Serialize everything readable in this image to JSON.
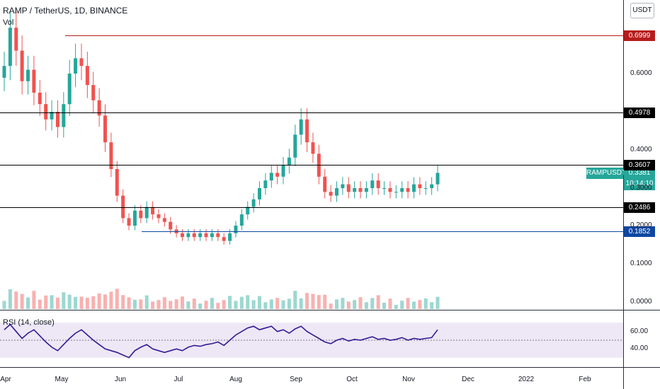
{
  "header": {
    "legend": "RAMP / TetherUS, 1D, BINANCE",
    "vol_label": "Vol",
    "rsi_label": "RSI (14, close)",
    "currency_button": "USDT"
  },
  "current": {
    "symbol": "RAMPUSDT",
    "price": "0.3381",
    "countdown": "10:14:10"
  },
  "colors": {
    "up": "#26a69a",
    "down": "#ef5350",
    "rsi": "#311b92",
    "rsi_band": "#ede7f6"
  },
  "chart_data": {
    "type": "candlestick",
    "x_axis_labels": [
      "Apr",
      "May",
      "Jun",
      "Jul",
      "Aug",
      "Sep",
      "Oct",
      "Nov",
      "Dec",
      "2022",
      "Feb"
    ],
    "y_axis_labels": [
      "0.6000",
      "0.4000",
      "0.3000",
      "0.2000",
      "0.1000",
      "0.0000"
    ],
    "rsi_axis_labels": [
      "60.00",
      "40.00"
    ],
    "levels": [
      {
        "label": "0.6999",
        "value": 0.6999,
        "color": "#b71c1c"
      },
      {
        "label": "0.4978",
        "value": 0.4978,
        "color": "#000000"
      },
      {
        "label": "0.3607",
        "value": 0.3607,
        "color": "#000000"
      },
      {
        "label": "0.2486",
        "value": 0.2486,
        "color": "#000000"
      },
      {
        "label": "0.1852",
        "value": 0.1852,
        "color": "#0d47a1"
      }
    ],
    "close_series": [
      0.62,
      0.72,
      0.66,
      0.58,
      0.61,
      0.55,
      0.52,
      0.48,
      0.5,
      0.46,
      0.52,
      0.6,
      0.64,
      0.62,
      0.57,
      0.53,
      0.49,
      0.42,
      0.35,
      0.28,
      0.22,
      0.2,
      0.24,
      0.22,
      0.25,
      0.23,
      0.22,
      0.21,
      0.19,
      0.18,
      0.17,
      0.18,
      0.17,
      0.18,
      0.17,
      0.18,
      0.17,
      0.16,
      0.18,
      0.2,
      0.23,
      0.25,
      0.27,
      0.3,
      0.32,
      0.34,
      0.33,
      0.36,
      0.38,
      0.44,
      0.48,
      0.42,
      0.39,
      0.33,
      0.29,
      0.28,
      0.3,
      0.31,
      0.29,
      0.3,
      0.29,
      0.3,
      0.32,
      0.3,
      0.3,
      0.29,
      0.29,
      0.3,
      0.29,
      0.31,
      0.3,
      0.3,
      0.31,
      0.34
    ],
    "rsi_series": [
      62,
      68,
      60,
      52,
      58,
      62,
      55,
      48,
      42,
      38,
      45,
      52,
      58,
      62,
      56,
      50,
      45,
      40,
      38,
      36,
      33,
      30,
      38,
      42,
      45,
      40,
      38,
      36,
      38,
      40,
      38,
      42,
      44,
      43,
      45,
      46,
      48,
      44,
      50,
      56,
      60,
      64,
      66,
      62,
      64,
      66,
      60,
      62,
      58,
      63,
      66,
      60,
      56,
      52,
      48,
      46,
      50,
      52,
      49,
      51,
      50,
      52,
      54,
      51,
      52,
      50,
      51,
      53,
      50,
      52,
      51,
      52,
      53,
      62
    ]
  }
}
